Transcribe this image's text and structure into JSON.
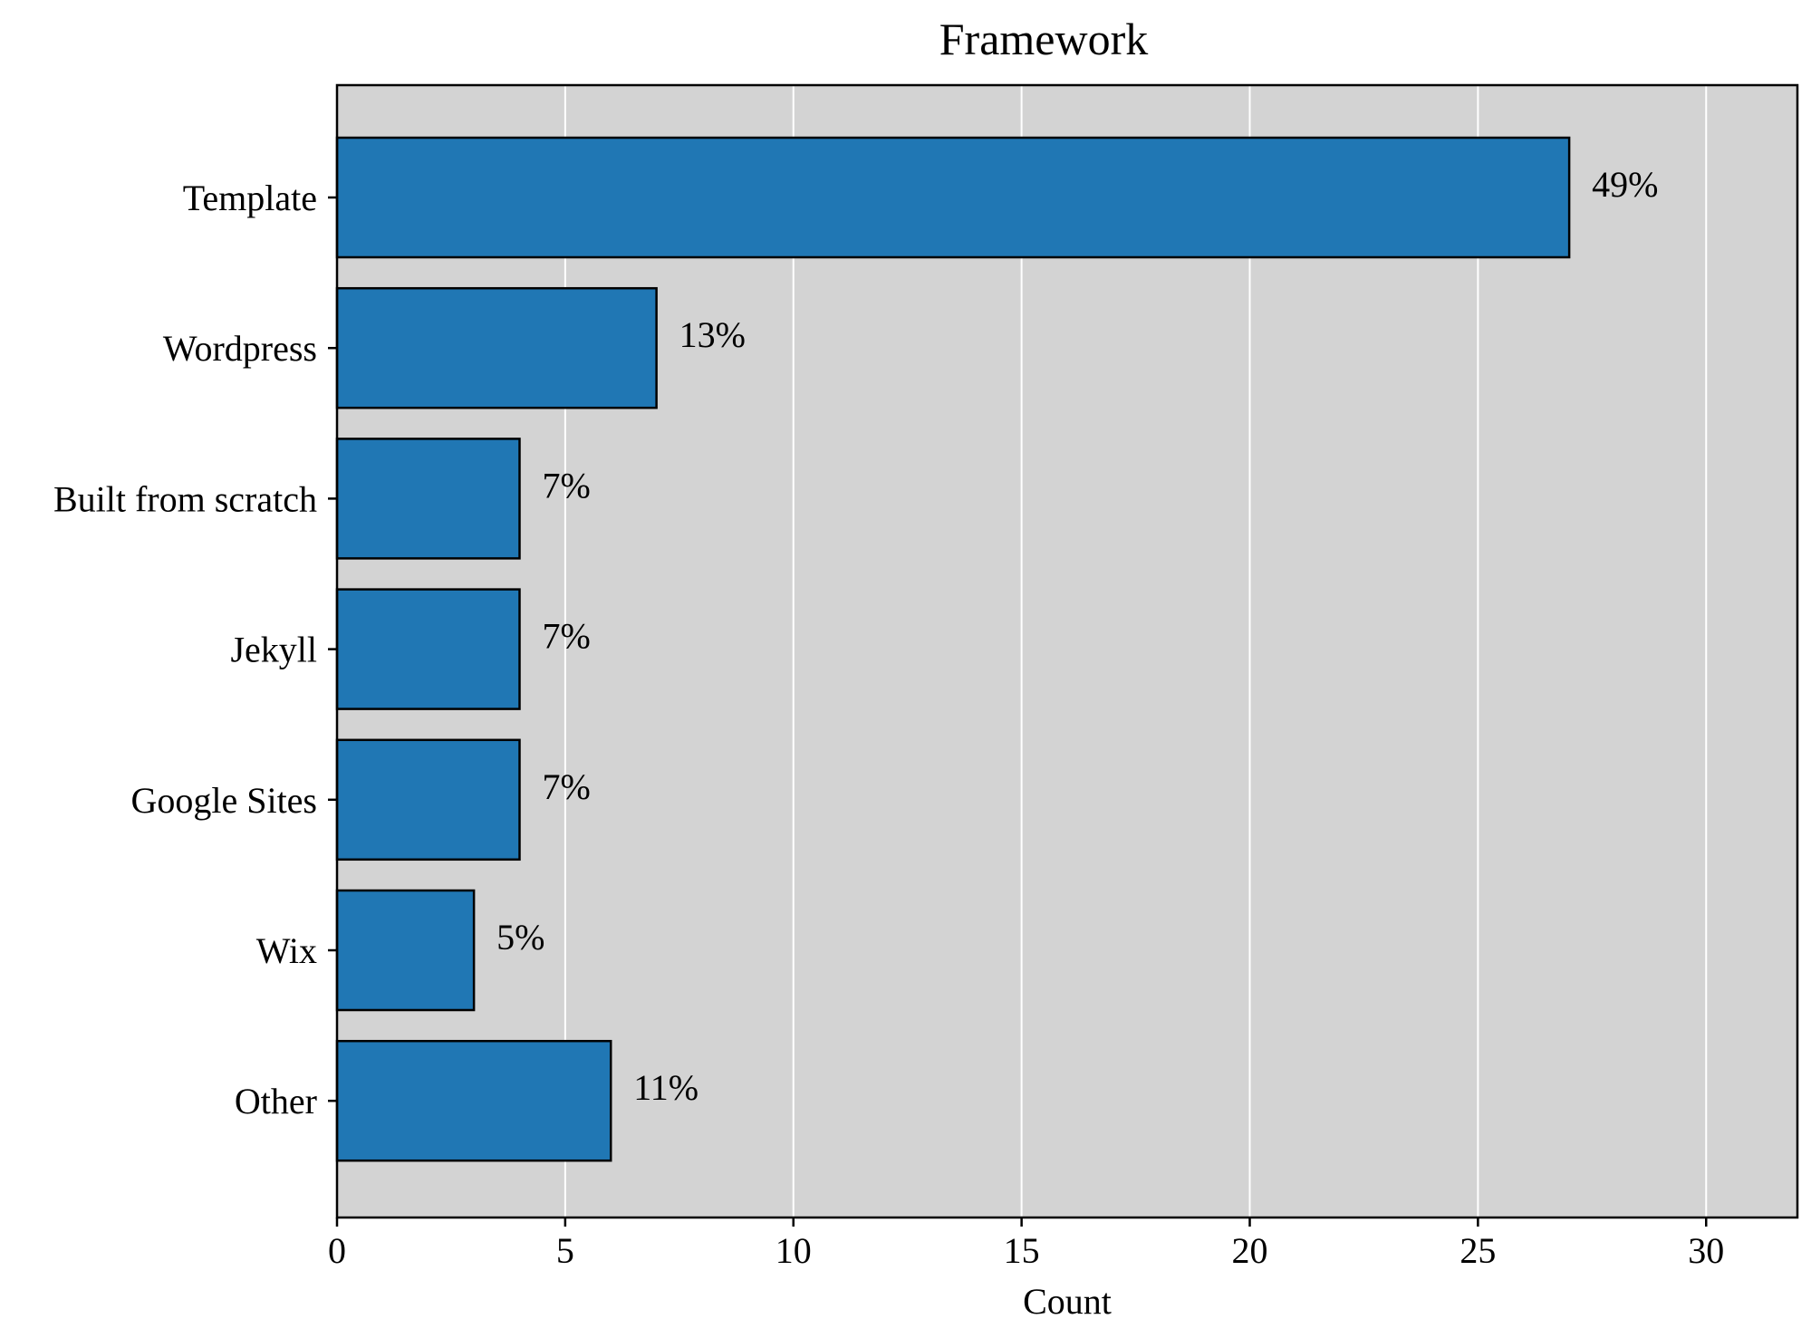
{
  "chart_data": {
    "type": "bar",
    "orientation": "horizontal",
    "title": "Framework",
    "xlabel": "Count",
    "ylabel": "",
    "categories": [
      "Template",
      "Wordpress",
      "Built from scratch",
      "Jekyll",
      "Google Sites",
      "Wix",
      "Other"
    ],
    "values": [
      27,
      7,
      4,
      4,
      4,
      3,
      6
    ],
    "data_labels": [
      "49%",
      "13%",
      "7%",
      "7%",
      "7%",
      "5%",
      "11%"
    ],
    "xlim": [
      0,
      32
    ],
    "xticks": [
      0,
      5,
      10,
      15,
      20,
      25,
      30
    ],
    "xtick_labels": [
      "0",
      "5",
      "10",
      "15",
      "20",
      "25",
      "30"
    ],
    "grid": "vertical",
    "colors": {
      "bar": "#2077b4",
      "bar_edge": "#000000",
      "plot_background": "#d3d3d3",
      "grid": "#ffffff"
    }
  }
}
